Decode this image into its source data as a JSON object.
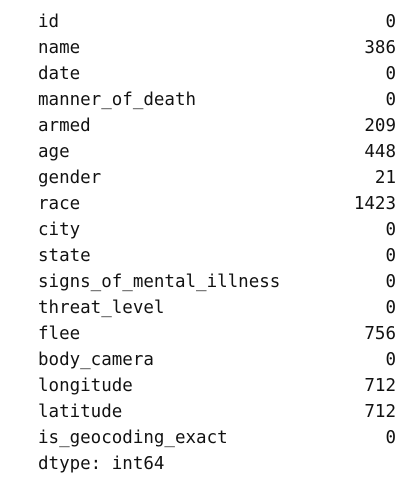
{
  "output": {
    "rows": [
      {
        "name": "id",
        "value": "0"
      },
      {
        "name": "name",
        "value": "386"
      },
      {
        "name": "date",
        "value": "0"
      },
      {
        "name": "manner_of_death",
        "value": "0"
      },
      {
        "name": "armed",
        "value": "209"
      },
      {
        "name": "age",
        "value": "448"
      },
      {
        "name": "gender",
        "value": "21"
      },
      {
        "name": "race",
        "value": "1423"
      },
      {
        "name": "city",
        "value": "0"
      },
      {
        "name": "state",
        "value": "0"
      },
      {
        "name": "signs_of_mental_illness",
        "value": "0"
      },
      {
        "name": "threat_level",
        "value": "0"
      },
      {
        "name": "flee",
        "value": "756"
      },
      {
        "name": "body_camera",
        "value": "0"
      },
      {
        "name": "longitude",
        "value": "712"
      },
      {
        "name": "latitude",
        "value": "712"
      },
      {
        "name": "is_geocoding_exact",
        "value": "0"
      }
    ],
    "dtype_line": "dtype: int64"
  }
}
